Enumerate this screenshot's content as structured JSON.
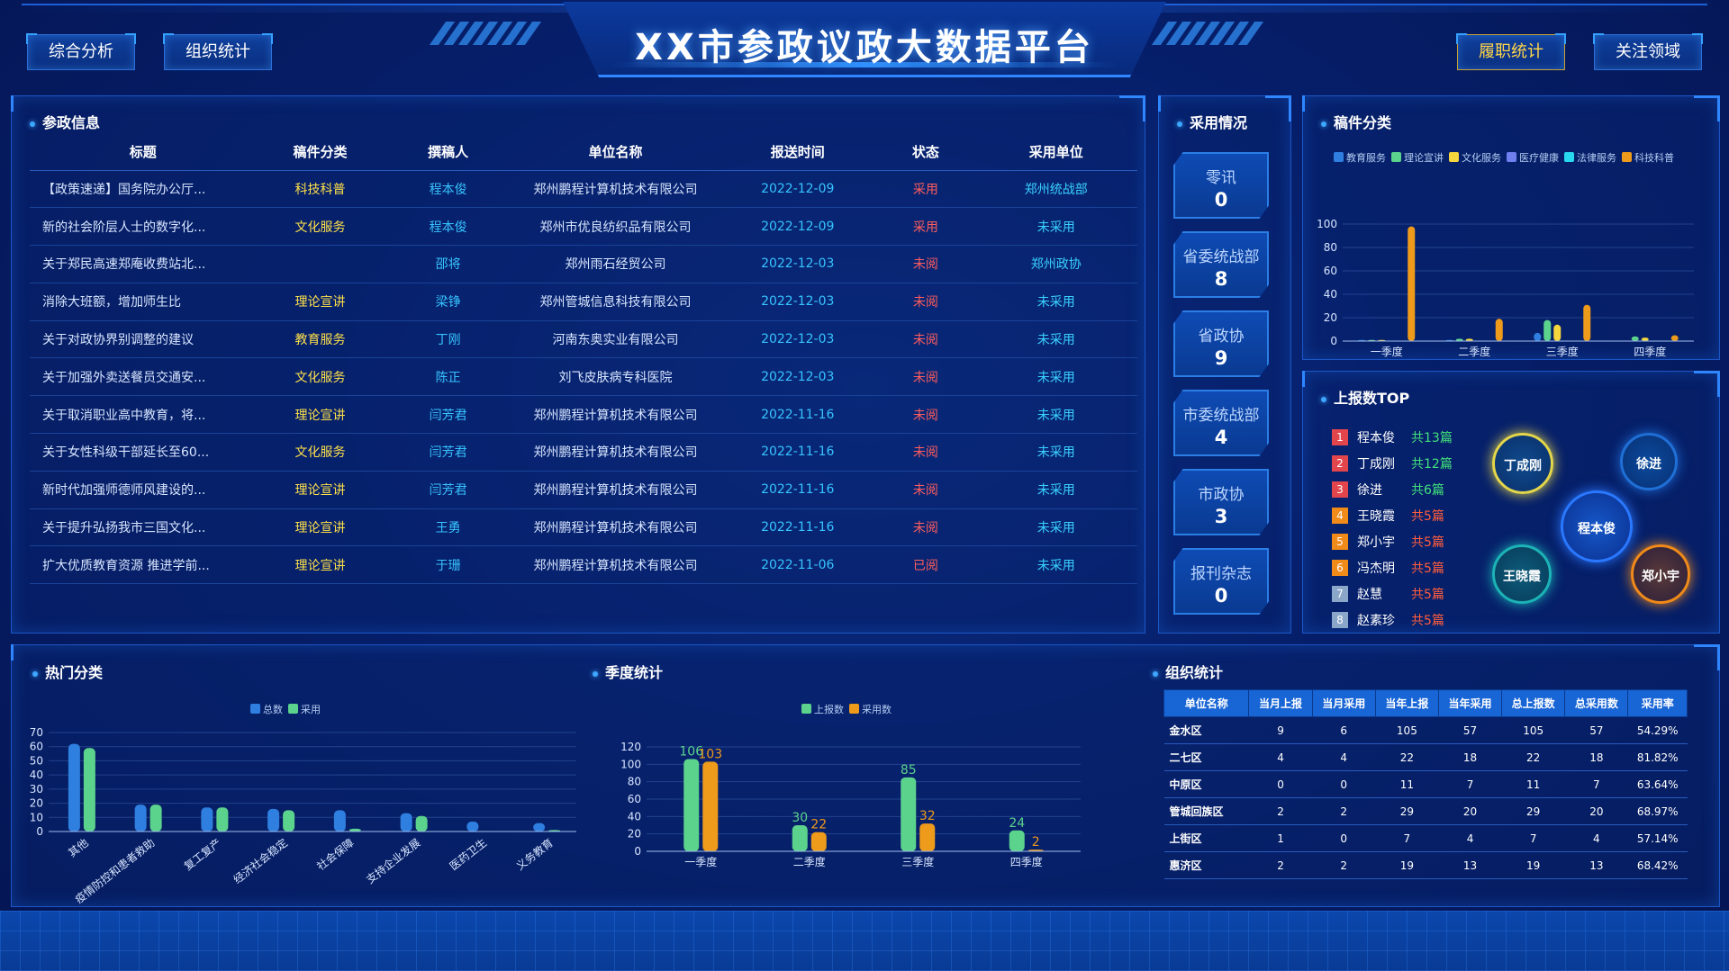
{
  "header": {
    "title": "XX市参政议政大数据平台",
    "left_buttons": [
      "综合分析",
      "组织统计"
    ],
    "right_buttons": [
      "履职统计",
      "关注领域"
    ]
  },
  "news": {
    "title": "参政信息",
    "columns": [
      "标题",
      "稿件分类",
      "撰稿人",
      "单位名称",
      "报送时间",
      "状态",
      "采用单位"
    ],
    "rows": [
      [
        "【政策速递】国务院办公厅...",
        "科技科普",
        "程本俊",
        "郑州鹏程计算机技术有限公司",
        "2022-12-09",
        "采用",
        "郑州统战部"
      ],
      [
        "新的社会阶层人士的数字化...",
        "文化服务",
        "程本俊",
        "郑州市优良纺织品有限公司",
        "2022-12-09",
        "采用",
        "未采用"
      ],
      [
        "关于郑民高速郑庵收费站北...",
        "",
        "邵将",
        "郑州雨石经贸公司",
        "2022-12-03",
        "未阅",
        "郑州政协"
      ],
      [
        "消除大班额，增加师生比",
        "理论宣讲",
        "梁铮",
        "郑州管城信息科技有限公司",
        "2022-12-03",
        "未阅",
        "未采用"
      ],
      [
        "关于对政协界别调整的建议",
        "教育服务",
        "丁刚",
        "河南东奥实业有限公司",
        "2022-12-03",
        "未阅",
        "未采用"
      ],
      [
        "关于加强外卖送餐员交通安...",
        "文化服务",
        "陈正",
        "刘飞皮肤病专科医院",
        "2022-12-03",
        "未阅",
        "未采用"
      ],
      [
        "关于取消职业高中教育，将...",
        "理论宣讲",
        "闫芳君",
        "郑州鹏程计算机技术有限公司",
        "2022-11-16",
        "未阅",
        "未采用"
      ],
      [
        "关于女性科级干部延长至60...",
        "文化服务",
        "闫芳君",
        "郑州鹏程计算机技术有限公司",
        "2022-11-16",
        "未阅",
        "未采用"
      ],
      [
        "新时代加强师德师风建设的...",
        "理论宣讲",
        "闫芳君",
        "郑州鹏程计算机技术有限公司",
        "2022-11-16",
        "未阅",
        "未采用"
      ],
      [
        "关于提升弘扬我市三国文化...",
        "理论宣讲",
        "王勇",
        "郑州鹏程计算机技术有限公司",
        "2022-11-16",
        "未阅",
        "未采用"
      ],
      [
        "扩大优质教育资源 推进学前...",
        "理论宣讲",
        "于珊",
        "郑州鹏程计算机技术有限公司",
        "2022-11-06",
        "已阅",
        "未采用"
      ]
    ]
  },
  "adoption": {
    "title": "采用情况",
    "items": [
      {
        "label": "零讯",
        "value": "0"
      },
      {
        "label": "省委统战部",
        "value": "8"
      },
      {
        "label": "省政协",
        "value": "9"
      },
      {
        "label": "市委统战部",
        "value": "4"
      },
      {
        "label": "市政协",
        "value": "3"
      },
      {
        "label": "报刊杂志",
        "value": "0"
      }
    ]
  },
  "top": {
    "title": "上报数TOP",
    "items": [
      {
        "rank": "1",
        "name": "程本俊",
        "count": "共13篇"
      },
      {
        "rank": "2",
        "name": "丁成刚",
        "count": "共12篇"
      },
      {
        "rank": "3",
        "name": "徐进",
        "count": "共6篇"
      },
      {
        "rank": "4",
        "name": "王晓霞",
        "count": "共5篇"
      },
      {
        "rank": "5",
        "name": "郑小宇",
        "count": "共5篇"
      },
      {
        "rank": "6",
        "name": "冯杰明",
        "count": "共5篇"
      },
      {
        "rank": "7",
        "name": "赵慧",
        "count": "共5篇"
      },
      {
        "rank": "8",
        "name": "赵素珍",
        "count": "共5篇"
      }
    ],
    "bubbles": [
      "丁成刚",
      "徐进",
      "程本俊",
      "王晓霞",
      "郑小宇"
    ]
  },
  "org": {
    "title": "组织统计",
    "columns": [
      "单位名称",
      "当月上报",
      "当月采用",
      "当年上报",
      "当年采用",
      "总上报数",
      "总采用数",
      "采用率"
    ],
    "rows": [
      [
        "金水区",
        "9",
        "6",
        "105",
        "57",
        "105",
        "57",
        "54.29%"
      ],
      [
        "二七区",
        "4",
        "4",
        "22",
        "18",
        "22",
        "18",
        "81.82%"
      ],
      [
        "中原区",
        "0",
        "0",
        "11",
        "7",
        "11",
        "7",
        "63.64%"
      ],
      [
        "管城回族区",
        "2",
        "2",
        "29",
        "20",
        "29",
        "20",
        "68.97%"
      ],
      [
        "上街区",
        "1",
        "0",
        "7",
        "4",
        "7",
        "4",
        "57.14%"
      ],
      [
        "惠济区",
        "2",
        "2",
        "19",
        "13",
        "19",
        "13",
        "68.42%"
      ]
    ]
  },
  "colors": {
    "blue": "#2f7fe0",
    "green": "#5cd38c",
    "orange": "#ee9a1a",
    "yellow": "#f5d63d",
    "purple": "#6f7ff0",
    "cyan": "#27d8ee"
  },
  "chart_data": [
    {
      "type": "bar",
      "title": "稿件分类",
      "categories": [
        "一季度",
        "二季度",
        "三季度",
        "四季度"
      ],
      "series": [
        {
          "name": "教育服务",
          "values": [
            1,
            1,
            7,
            0
          ]
        },
        {
          "name": "理论宣讲",
          "values": [
            1,
            2,
            18,
            4
          ]
        },
        {
          "name": "文化服务",
          "values": [
            1,
            2,
            14,
            3
          ]
        },
        {
          "name": "医疗健康",
          "values": [
            0,
            0,
            0,
            0
          ]
        },
        {
          "name": "法律服务",
          "values": [
            0,
            0,
            0,
            0
          ]
        },
        {
          "name": "科技科普",
          "values": [
            98,
            19,
            31,
            5
          ]
        }
      ],
      "ylim": [
        0,
        100
      ],
      "yticks": [
        0,
        20,
        40,
        60,
        80,
        100
      ],
      "legend": "top"
    },
    {
      "type": "bar",
      "title": "热门分类",
      "categories": [
        "其他",
        "疫情防控和患者救助",
        "复工复产",
        "经济社会稳定",
        "社会保障",
        "支持企业发展",
        "医药卫生",
        "义务教育"
      ],
      "series": [
        {
          "name": "总数",
          "values": [
            62,
            19,
            17,
            16,
            15,
            13,
            7,
            6
          ]
        },
        {
          "name": "采用",
          "values": [
            59,
            19,
            17,
            15,
            2,
            11,
            0,
            1
          ]
        }
      ],
      "ylim": [
        0,
        70
      ],
      "yticks": [
        0,
        10,
        20,
        30,
        40,
        50,
        60,
        70
      ],
      "legend": "top"
    },
    {
      "type": "bar",
      "title": "季度统计",
      "categories": [
        "一季度",
        "二季度",
        "三季度",
        "四季度"
      ],
      "series": [
        {
          "name": "上报数",
          "values": [
            106,
            30,
            85,
            24
          ]
        },
        {
          "name": "采用数",
          "values": [
            103,
            22,
            32,
            2
          ]
        }
      ],
      "ylim": [
        0,
        120
      ],
      "yticks": [
        0,
        20,
        40,
        60,
        80,
        100,
        120
      ],
      "legend": "top"
    }
  ]
}
